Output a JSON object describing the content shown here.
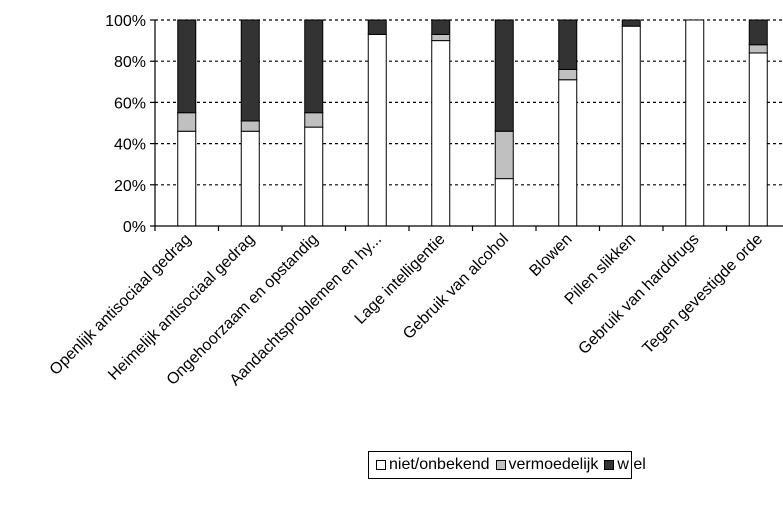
{
  "chart_data": {
    "type": "bar",
    "stacked": true,
    "percent": true,
    "categories": [
      "Openlijk antisociaal gedrag",
      "Heimelijk antisociaal gedrag",
      "Ongehoorzaam en opstandig",
      "Aandachtsproblemen en hy...",
      "Lage intelligentie",
      "Gebruik van alcohol",
      "Blowen",
      "Pillen slikken",
      "Gebruik van harddrugs",
      "Tegen gevestigde orde"
    ],
    "series": [
      {
        "name": "niet/onbekend",
        "color": "#ffffff",
        "values": [
          46,
          46,
          48,
          93,
          90,
          23,
          71,
          97,
          100,
          84
        ]
      },
      {
        "name": "vermoedelijk",
        "color": "#c0c0c0",
        "values": [
          9,
          5,
          7,
          0,
          3,
          23,
          5,
          0,
          0,
          4
        ]
      },
      {
        "name": "w el",
        "color": "#333333",
        "values": [
          45,
          49,
          45,
          7,
          7,
          54,
          24,
          3,
          0,
          12
        ]
      }
    ],
    "yticks": [
      "0%",
      "20%",
      "40%",
      "60%",
      "80%",
      "100%"
    ],
    "ylim": [
      0,
      100
    ],
    "grid": "horizontal dashed",
    "legend": "bottom"
  }
}
